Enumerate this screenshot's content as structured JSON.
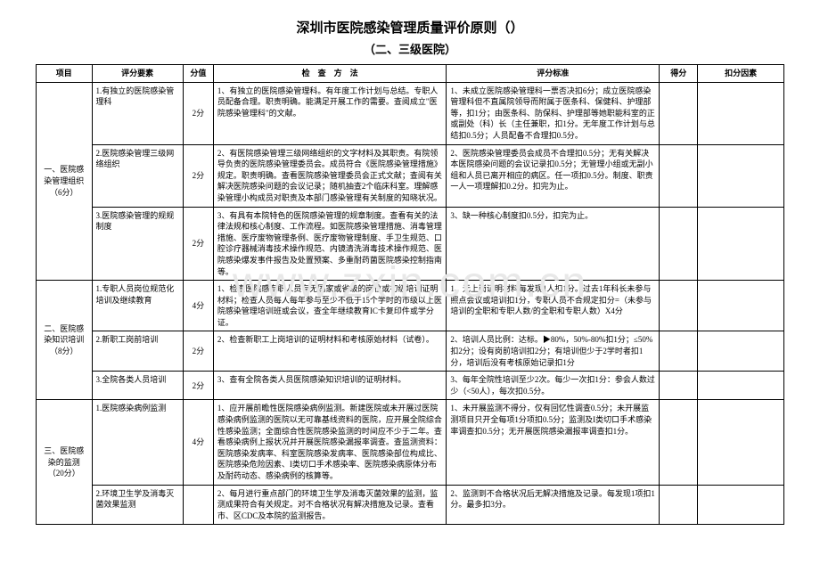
{
  "title": "深圳市医院感染管理质量评价原则（）",
  "subtitle": "（二、三级医院）",
  "watermark": "www.zxin.com.cn",
  "headers": {
    "project": "项目",
    "element": "评分要素",
    "score": "分值",
    "method": "检　查　方　法",
    "standard": "评分标准",
    "gotscore": "得分",
    "deduct": "扣分因素"
  },
  "sections": [
    {
      "project": "一、医院感染管理组织（6分）",
      "rows": [
        {
          "element": "1.有独立的医院感染管理科",
          "score": "2分",
          "method": "1、有独立的医院感染管理科。有年度工作计划与总结。专职人员配备合理。职责明确。能满足开展工作的需要。查阅成立\"医院感染管理科\"的文献。",
          "standard": "1、未成立医院感染管理科一票否决扣6分；成立医院感染管理科但不直属院领导而附属于医条科、保健科、护理部等，扣1分；由医条科、防保科、护理部等她职能科室的正或副处（科）长（主任兼职，扣1分。无年度工作计划与总结扣0.5分；人员配备不合理扣0.5分。"
        },
        {
          "element": "2.医院感染管理三级网络组织",
          "score": "2分",
          "method": "2、有医院感染管理三级网络组织的文字材料及其职责。有院领导负责的医院感染管理委员会。成员符合《医院感染管理措施》规定。职责明确。查看医院感染管理委员会正式文献；查阅有关解决医院感染问题的会议记录；随机抽查2个临床科室。理解感染管理小构成员对职责及本部门感染管理有关制度的知晓状况。",
          "standard": "2、医院感染管理委员会成员不合理扣0.5分；无有关解决本医院感染问题的会议记录扣0.5分；无管理小组或无副小组和人员已离开相应的病区。任一项扣0.5分。制度、职责一人一项理解扣0.2分。扣完为止。"
        },
        {
          "element": "3.医院感染管理的规规制度",
          "score": "2分",
          "method": "3、有具有本院特色的医院感染管理的规章制度。查看有关的法律法规和核心制度、工作流程。如医院感染管理措施、消毒管理措施、医疗废物管理条例、医疗废物管理制度、手卫生规范、口腔诊疗器械消毒技术操作规范、内镜清洗消毒技术操作规范、医院感染爆发事件报告及处置预案、多重耐药菌医院感染控制指南等。",
          "standard": "3、缺一种核心制度扣0.5分，扣完为止。"
        }
      ]
    },
    {
      "project": "二、医院感染知识培训（8分）",
      "rows": [
        {
          "element": "1.专职人员岗位规范化培训及继续教育",
          "score": "4分",
          "method": "1、检查医院感专职人员有无国家或省级的岗位或初级培训证明材料；检查人员每人每年参与至少不低于15个学时的市级以上医院感染管理培训班或会议，查全年继续教育IC卡复印件或学分证。",
          "standard": "1、无上岗证明材料每发现1人扣1分。过去1年科长未参与照点会议或培训扣1分，专职人员不合规定扣分=（未参与培训的全职和专职人数/的全职和专职人数）X4分"
        },
        {
          "element": "2.新职工岗前培训",
          "score": "2分",
          "method": "2、检查新职工上岗培训的证明材料和考核原始材料（试卷）。",
          "standard": "2、培训人员比例：达标。▶80%，50%-80%扣1分；≤50%扣2分；设有岗前培训扣2分；有培训但少于2学时者扣1分，培训后没有考核原始记录扣1分"
        },
        {
          "element": "3.全院各类人员培训",
          "score": "2分",
          "method": "3、查有全院各类人员医院感染知识培训的证明材料。",
          "standard": "3、每年全院性培训至少2次。每少一次扣1分：参会人数过少（<50人），每次扣0.5分。"
        }
      ]
    },
    {
      "project": "三、医院感染的监测（20分）",
      "rows": [
        {
          "element": "1.医院感染病例监测",
          "score": "4分",
          "method": "1、应开展前瞻性医院感染病例监测。新建医院或未开展过医院感染病例监测的医院以无可靠基线资料的医院，应开展全院综合性感染监测；全面综合性医院感染监测的时间应不少于二年。查看感染病例上报状况并开展医院感染漏报率调查。查监测资料：医院感染发病率、科室医院感染发病率、医院感染部位构成比、医院感染危险因素、I类切口手术感染率、医院感染病原体分布及耐药动态、感染病例的核算等。",
          "standard": "1、未开展监测不得分，仅有回忆性调查0.5分；未开展监测项目只开全每项1分项扣0.5分；监测及I类切口手术感染率调查扣0.5分；无开展医院感染漏报率调查扣1分。"
        },
        {
          "element": "2.环境卫生学及消毒灭菌效果监测",
          "score": "",
          "method": "2、每月进行重点部门的环境卫生学及消毒灭菌效果的监测，监测成果符合有关规定。对不合格状况有解决措施及记录。查看市、区CDC及本院的监测报告。",
          "standard": "2、监测到不合格状况后无解决措施及记录。每发现1项扣1分。最多扣3分。"
        }
      ]
    }
  ]
}
